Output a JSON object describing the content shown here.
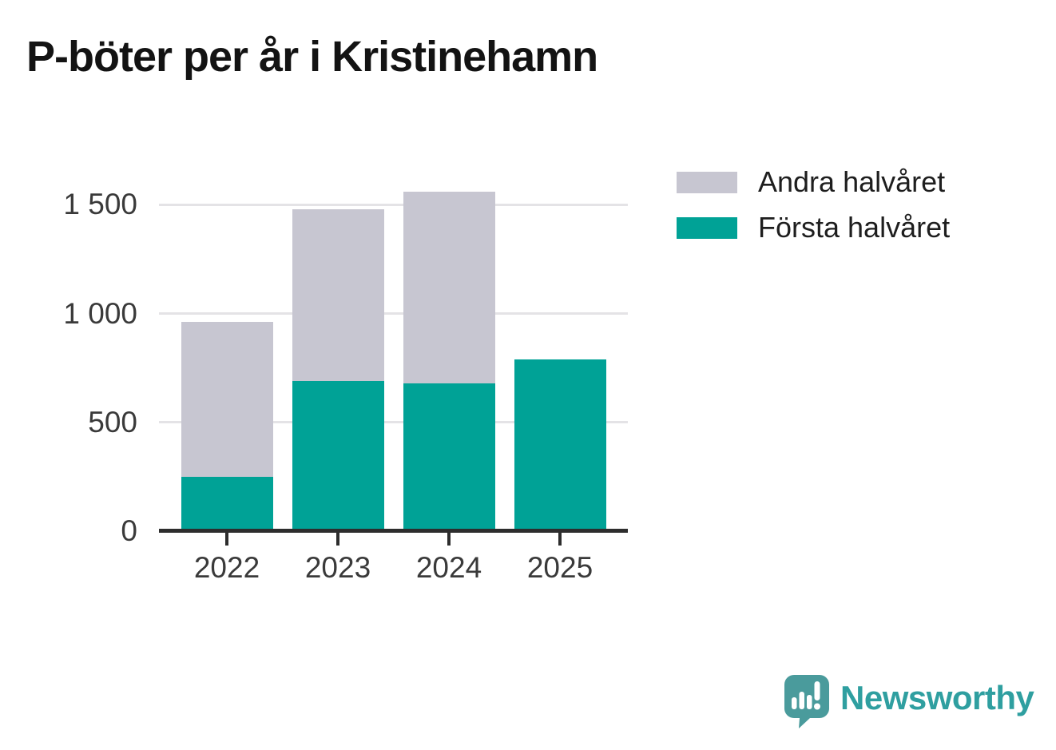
{
  "header": {
    "title": "P-böter per år i Kristinehamn"
  },
  "chart_data": {
    "type": "bar",
    "stacked": true,
    "title": "P-böter per år i Kristinehamn",
    "categories": [
      "2022",
      "2023",
      "2024",
      "2025"
    ],
    "series": [
      {
        "name": "Första halvåret",
        "color": "#00a296",
        "values": [
          250,
          690,
          680,
          790
        ]
      },
      {
        "name": "Andra halvåret",
        "color": "#c7c6d1",
        "values": [
          710,
          790,
          880,
          0
        ]
      }
    ],
    "xlabel": "",
    "ylabel": "",
    "ylim": [
      0,
      1600
    ],
    "yticks": [
      0,
      500,
      1000,
      1500
    ],
    "ytick_labels": [
      "0",
      "500",
      "1 000",
      "1 500"
    ],
    "grid": true,
    "legend_position": "top-right"
  },
  "legend": {
    "items": [
      {
        "label": "Andra halvåret",
        "color": "#c7c6d1"
      },
      {
        "label": "Första halvåret",
        "color": "#00a296"
      }
    ]
  },
  "footer": {
    "brand": "Newsworthy"
  },
  "colors": {
    "first_half_teal": "#00a296",
    "second_half_gray": "#c7c6d1",
    "axis": "#2d2d2d",
    "gridline": "#e4e3e6",
    "tick_label": "#3a3a3a",
    "title": "#131313",
    "brand_text": "#2f9fa0",
    "brand_bubble": "#4a9b9c"
  }
}
